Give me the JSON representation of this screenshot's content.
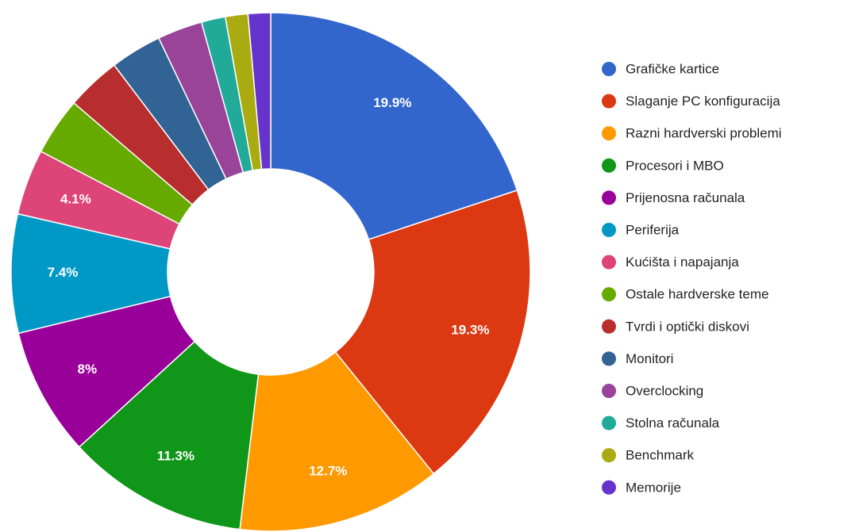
{
  "chart_data": {
    "type": "pie",
    "donut": true,
    "categories": [
      "Grafičke kartice",
      "Slaganje PC konfiguracija",
      "Razni hardverski problemi",
      "Procesori i MBO",
      "Prijenosna računala",
      "Periferija",
      "Kućišta i napajanja",
      "Ostale hardverske teme",
      "Tvrdi i optički diskovi",
      "Monitori",
      "Overclocking",
      "Stolna računala",
      "Benchmark",
      "Memorije"
    ],
    "values": [
      19.9,
      19.3,
      12.7,
      11.3,
      8,
      7.4,
      4.1,
      3.6,
      3.4,
      3.2,
      2.8,
      1.5,
      1.4,
      1.4
    ],
    "value_labels": [
      "19.9%",
      "19.3%",
      "12.7%",
      "11.3%",
      "8%",
      "7.4%",
      "4.1%",
      null,
      null,
      null,
      null,
      null,
      null,
      null
    ],
    "colors": [
      "#3366cc",
      "#dc3912",
      "#ff9900",
      "#109618",
      "#990099",
      "#0099c6",
      "#dd4477",
      "#66aa00",
      "#b82e2e",
      "#316395",
      "#994499",
      "#22aa99",
      "#aaaa11",
      "#6633cc"
    ],
    "legend": "right"
  }
}
